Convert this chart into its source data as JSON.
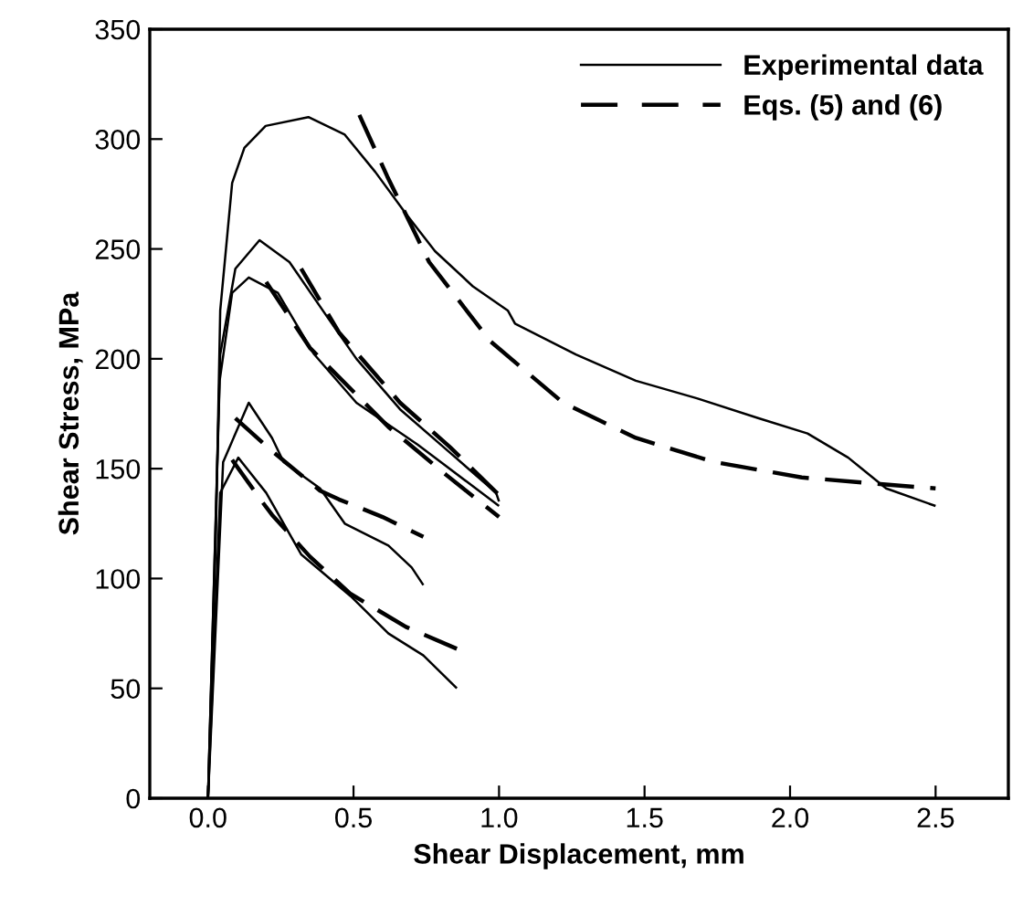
{
  "chart_data": {
    "type": "line",
    "xlabel": "Shear Displacement, mm",
    "ylabel": "Shear Stress, MPa",
    "xlim": [
      -0.2,
      2.75
    ],
    "ylim": [
      0,
      350
    ],
    "xticks": [
      {
        "value": 0,
        "label": "0.0"
      },
      {
        "value": 0.5,
        "label": "0.5"
      },
      {
        "value": 1,
        "label": "1.0"
      },
      {
        "value": 1.5,
        "label": "1.5"
      },
      {
        "value": 2,
        "label": "2.0"
      },
      {
        "value": 2.5,
        "label": "2.5"
      }
    ],
    "yticks": [
      0,
      50,
      100,
      150,
      200,
      250,
      300,
      350
    ],
    "grid": false,
    "legend": "top right",
    "marker": "none",
    "series": [
      {
        "name": "Experimental data",
        "color": "#000000",
        "line_style": "solid",
        "x": [
          0,
          0.027,
          0.042,
          0.083,
          0.125,
          0.198,
          0.345,
          0.47,
          0.575,
          0.68,
          0.78,
          0.91,
          1.03,
          1.055,
          1.264,
          1.47,
          1.68,
          1.89,
          2.06,
          2.2,
          2.33,
          2.5
        ],
        "values": [
          0,
          119,
          222,
          280,
          296,
          306,
          310,
          302,
          285,
          266,
          249,
          233,
          222,
          216,
          202,
          190,
          182,
          173,
          166,
          155,
          141,
          133
        ]
      },
      {
        "name": "Eqs. (5) and (6)",
        "color": "#000000",
        "line_style": "dashed",
        "x": [
          0.52,
          0.616,
          0.76,
          0.97,
          1.22,
          1.47,
          1.74,
          2.04,
          2.31,
          2.5
        ],
        "values": [
          311,
          283,
          244,
          208,
          180,
          164,
          153,
          146,
          143,
          141
        ]
      },
      {
        "color": "#000000",
        "line_style": "solid",
        "x": [
          0,
          0.042,
          0.094,
          0.177,
          0.28,
          0.41,
          0.51,
          0.66,
          0.825,
          0.99,
          1.0
        ],
        "values": [
          0,
          202,
          241,
          254,
          244,
          219,
          200,
          177,
          158,
          139,
          135
        ]
      },
      {
        "color": "#000000",
        "line_style": "dashed",
        "x": [
          0.32,
          0.45,
          0.66,
          0.83,
          1.0
        ],
        "values": [
          241,
          212,
          180,
          160,
          138
        ]
      },
      {
        "color": "#000000",
        "line_style": "solid",
        "x": [
          0,
          0.04,
          0.083,
          0.14,
          0.24,
          0.365,
          0.51,
          0.72,
          0.89,
          1.0
        ],
        "values": [
          0,
          190,
          230,
          237,
          230,
          202,
          180,
          161,
          144,
          133
        ]
      },
      {
        "color": "#000000",
        "line_style": "dashed",
        "x": [
          0.2,
          0.35,
          0.62,
          0.82,
          1.0
        ],
        "values": [
          235,
          205,
          169,
          147,
          128
        ]
      },
      {
        "color": "#000000",
        "line_style": "solid",
        "x": [
          0,
          0.052,
          0.14,
          0.22,
          0.26,
          0.385,
          0.47,
          0.62,
          0.7,
          0.74
        ],
        "values": [
          0,
          153,
          180,
          164,
          153,
          141,
          125,
          115,
          105,
          97
        ]
      },
      {
        "color": "#000000",
        "line_style": "dashed",
        "x": [
          0.094,
          0.22,
          0.385,
          0.45,
          0.6,
          0.74
        ],
        "values": [
          173,
          158,
          140,
          136,
          128,
          119
        ]
      },
      {
        "color": "#000000",
        "line_style": "solid",
        "x": [
          0,
          0.042,
          0.104,
          0.2,
          0.32,
          0.49,
          0.62,
          0.74,
          0.855
        ],
        "values": [
          0,
          139,
          155,
          139,
          111,
          92,
          75,
          65,
          50
        ]
      },
      {
        "color": "#000000",
        "line_style": "dashed",
        "x": [
          0.083,
          0.18,
          0.22,
          0.35,
          0.49,
          0.68,
          0.855
        ],
        "values": [
          154,
          136,
          129,
          110,
          93,
          78,
          68
        ]
      }
    ]
  }
}
